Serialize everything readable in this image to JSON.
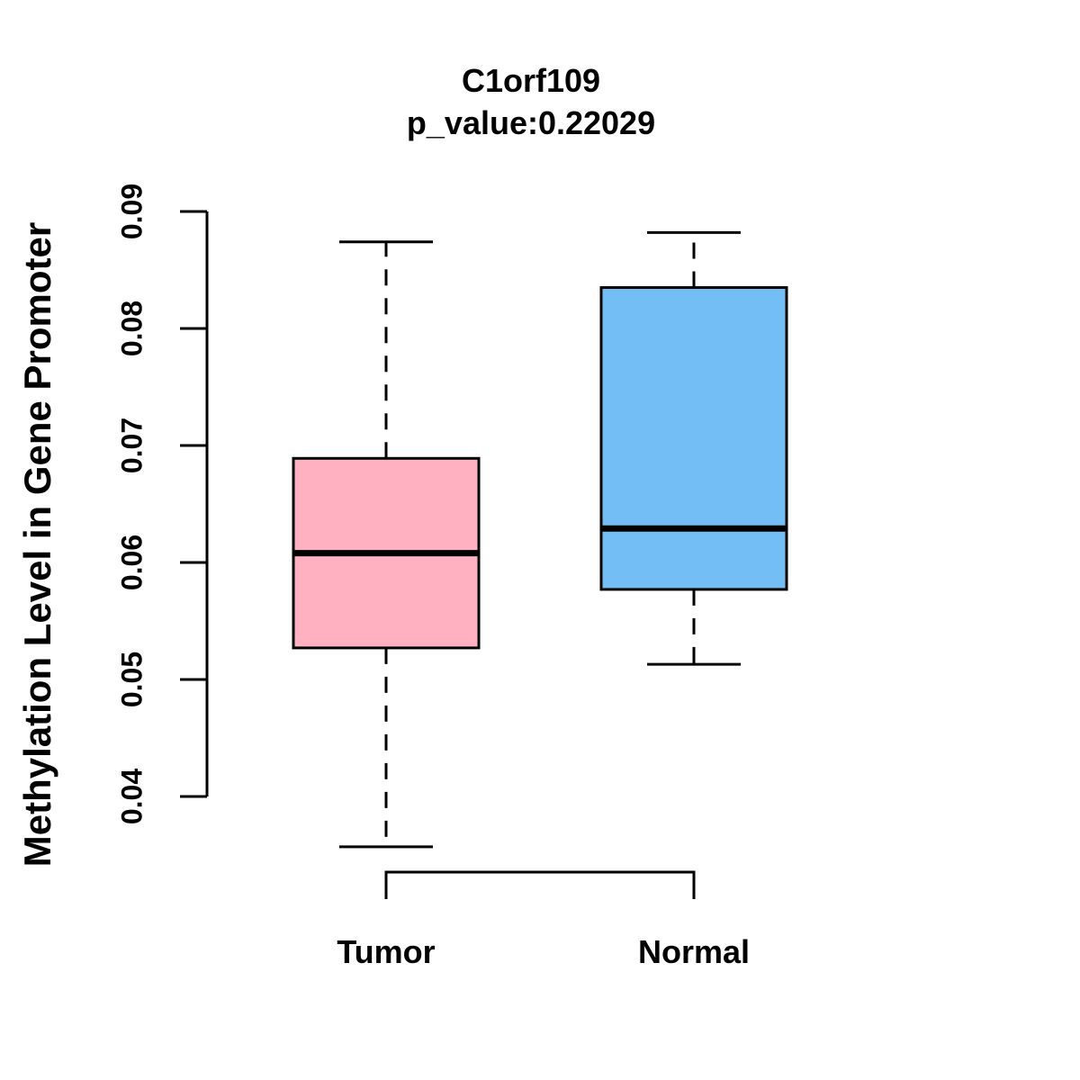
{
  "figure": {
    "title": "C1orf109",
    "subtitle": "p_value:0.22029",
    "y_axis_label": "Methylation Level in Gene Promoter"
  },
  "chart_data": {
    "type": "boxplot",
    "title": "C1orf109",
    "subtitle": "p_value:0.22029",
    "p_value": 0.22029,
    "ylabel": "Methylation Level in Gene Promoter",
    "xlabel": "",
    "ylim": [
      0.04,
      0.09
    ],
    "y_ticks": [
      0.09,
      0.08,
      0.07,
      0.06,
      0.05,
      0.04
    ],
    "y_tick_labels": [
      "0.09",
      "0.08",
      "0.07",
      "0.06",
      "0.05",
      "0.04"
    ],
    "categories": [
      "Tumor",
      "Normal"
    ],
    "grid": false,
    "legend_position": "none",
    "series": [
      {
        "name": "Tumor",
        "color": "#FFB1C1",
        "whisker_low": 0.0357,
        "q1": 0.0527,
        "median": 0.0608,
        "q3": 0.0689,
        "whisker_high": 0.0874
      },
      {
        "name": "Normal",
        "color": "#73BFF5",
        "whisker_low": 0.0513,
        "q1": 0.0577,
        "median": 0.0629,
        "q3": 0.0835,
        "whisker_high": 0.0882
      }
    ]
  },
  "colors": {
    "stroke": "#000000",
    "background": "#FFFFFF",
    "tumor_fill": "#FFB1C1",
    "normal_fill": "#73BFF5"
  }
}
